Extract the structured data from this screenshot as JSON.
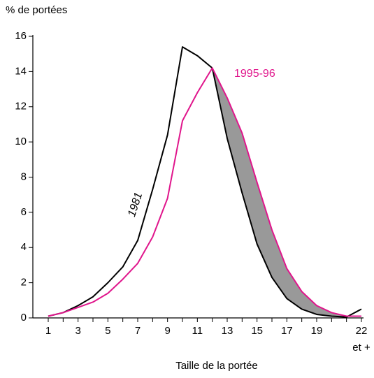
{
  "chart_data": {
    "type": "line",
    "y_label": "% de portées",
    "x_label": "Taille de la portée",
    "x_note": "et +",
    "categories": [
      "1",
      null,
      "3",
      null,
      "5",
      null,
      "7",
      null,
      "9",
      null,
      "11",
      null,
      "13",
      null,
      "15",
      null,
      "17",
      null,
      "19",
      null,
      null,
      "22"
    ],
    "series": [
      {
        "name": "1981",
        "color": "#000000",
        "values": [
          0.1,
          0.3,
          0.7,
          1.2,
          2.0,
          2.9,
          4.4,
          7.3,
          10.4,
          15.4,
          14.9,
          14.2,
          10.2,
          7.1,
          4.2,
          2.3,
          1.1,
          0.5,
          0.2,
          0.1,
          0.05,
          0.5
        ]
      },
      {
        "name": "1995-96",
        "color": "#e0168c",
        "values": [
          0.1,
          0.3,
          0.6,
          0.9,
          1.4,
          2.2,
          3.1,
          4.6,
          6.8,
          11.2,
          12.8,
          14.2,
          12.5,
          10.5,
          7.7,
          5.0,
          2.8,
          1.5,
          0.7,
          0.3,
          0.1,
          0.1
        ]
      }
    ],
    "fill_between_color": "#999999",
    "ylim": [
      0,
      16
    ],
    "yticks": [
      0,
      2,
      4,
      6,
      8,
      10,
      12,
      14,
      16
    ],
    "grid": false
  }
}
